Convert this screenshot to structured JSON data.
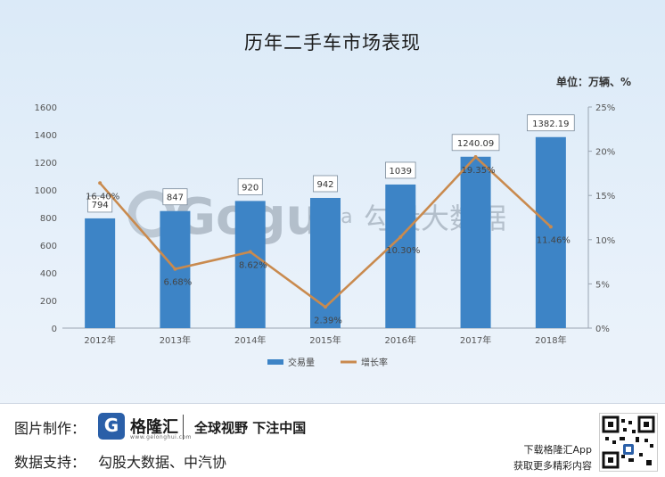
{
  "chart_data": {
    "type": "bar+line",
    "title": "历年二手车市场表现",
    "unit": "单位：万辆、%",
    "categories": [
      "2012年",
      "2013年",
      "2014年",
      "2015年",
      "2016年",
      "2017年",
      "2018年"
    ],
    "series": [
      {
        "name": "交易量",
        "type": "bar",
        "axis": "left",
        "color": "#3d84c6",
        "values": [
          794,
          847,
          920,
          942,
          1039,
          1240.09,
          1382.19
        ],
        "labels": [
          "794",
          "847",
          "920",
          "942",
          "1039",
          "1240.09",
          "1382.19"
        ]
      },
      {
        "name": "增长率",
        "type": "line",
        "axis": "right",
        "color": "#c98a4e",
        "values": [
          16.4,
          6.68,
          8.62,
          2.39,
          10.3,
          19.35,
          11.46
        ],
        "labels": [
          "16.40%",
          "6.68%",
          "8.62%",
          "2.39%",
          "10.30%",
          "19.35%",
          "11.46%"
        ]
      }
    ],
    "y_left": {
      "min": 0,
      "max": 1600,
      "ticks": [
        0,
        200,
        400,
        600,
        800,
        1000,
        1200,
        1400,
        1600
      ]
    },
    "y_right": {
      "min": 0,
      "max": 25,
      "ticks": [
        "0%",
        "5%",
        "10%",
        "15%",
        "20%",
        "25%"
      ]
    },
    "legend_position": "bottom",
    "grid": false
  },
  "watermark": {
    "brand": "Gogu",
    "sub": "data",
    "cn": "勾股大数据"
  },
  "footer": {
    "made_by_label": "图片制作：",
    "logo_name": "格隆汇",
    "logo_url": "www.gelonghui.com",
    "slogan": "全球视野 下注中国",
    "source_label": "数据支持：",
    "source_value": "勾股大数据、中汽协",
    "download_line1": "下载格隆汇App",
    "download_line2": "获取更多精彩内容"
  }
}
